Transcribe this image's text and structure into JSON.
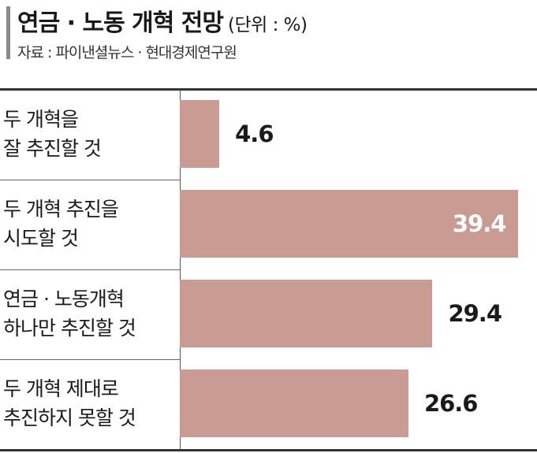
{
  "title": "연금 · 노동 개혁 전망",
  "unit": "(단위 : %)",
  "source": "자료 : 파이낸셜뉴스 · 현대경제연구원",
  "colors": {
    "bar": "#c99b93",
    "accent": "#8a8a8a"
  },
  "chart_data": {
    "type": "bar",
    "orientation": "horizontal",
    "categories": [
      [
        "두 개혁을",
        "잘 추진할 것"
      ],
      [
        "두 개혁 추진을",
        "시도할 것"
      ],
      [
        "연금 · 노동개혁",
        "하나만 추진할 것"
      ],
      [
        "두 개혁 제대로",
        "추진하지 못할 것"
      ]
    ],
    "values": [
      4.6,
      39.4,
      29.4,
      26.6
    ],
    "value_labels": [
      "4.6",
      "39.4",
      "29.4",
      "26.6"
    ],
    "xlim": [
      0,
      40
    ],
    "grid": false,
    "legend": "none"
  }
}
